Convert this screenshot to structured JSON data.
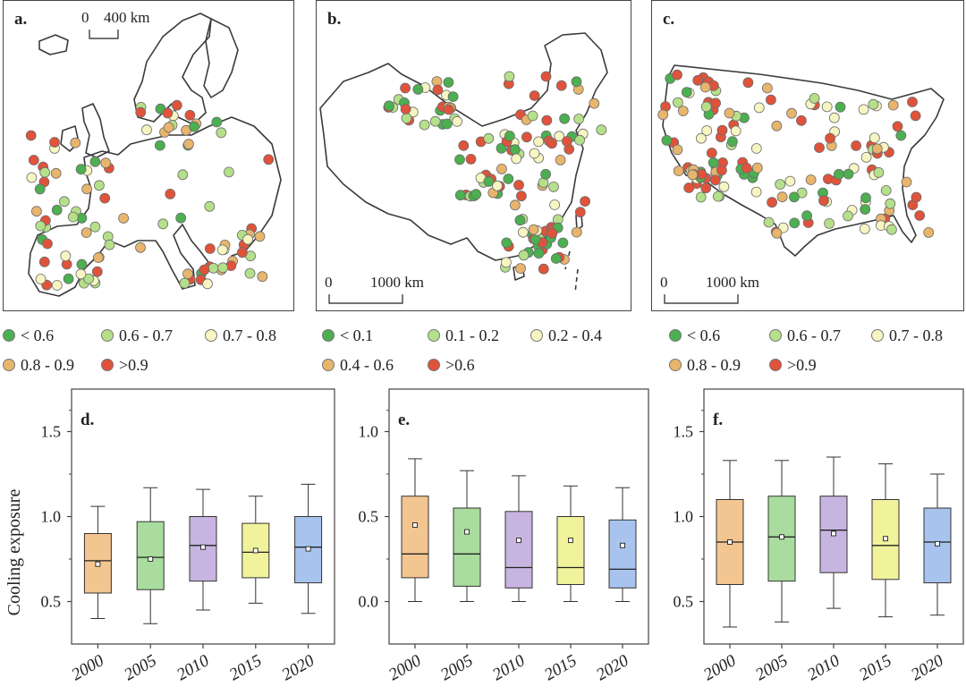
{
  "panels": {
    "a": {
      "label": "a.",
      "scale": {
        "zero": "0",
        "value": "400 km"
      }
    },
    "b": {
      "label": "b.",
      "scale": {
        "zero": "0",
        "value": "1000 km"
      }
    },
    "c": {
      "label": "c.",
      "scale": {
        "zero": "0",
        "value": "1000 km"
      }
    }
  },
  "colors": {
    "cat1": "#4caf50",
    "cat2": "#b5e08a",
    "cat3": "#f7f5c2",
    "cat4": "#e8b56c",
    "cat5": "#e0533a",
    "box_europe": "#f3c590",
    "box_2005": "#a9dc9e",
    "box_2010": "#c8b4e0",
    "box_2015": "#f1f39c",
    "box_2020": "#a8c4ee"
  },
  "legends": {
    "a": [
      "< 0.6",
      "0.6 - 0.7",
      "0.7 - 0.8",
      "0.8 - 0.9",
      ">0.9"
    ],
    "b": [
      "< 0.1",
      "0.1 - 0.2",
      "0.2 - 0.4",
      "0.4 - 0.6",
      ">0.6"
    ],
    "c": [
      "< 0.6",
      "0.6 - 0.7",
      "0.7 - 0.8",
      "0.8 - 0.9",
      ">0.9"
    ]
  },
  "chart_data": [
    {
      "panel": "d.",
      "type": "box",
      "ylabel": "Cooling exposure",
      "categories": [
        "2000",
        "2005",
        "2010",
        "2015",
        "2020"
      ],
      "ylim": [
        0.25,
        1.75
      ],
      "yticks": [
        "0.5",
        "1.0",
        "1.5"
      ],
      "ytick_values": [
        0.5,
        1.0,
        1.5
      ],
      "boxes": [
        {
          "min": 0.4,
          "q1": 0.55,
          "median": 0.74,
          "q3": 0.9,
          "max": 1.06,
          "mean": 0.72
        },
        {
          "min": 0.37,
          "q1": 0.57,
          "median": 0.76,
          "q3": 0.97,
          "max": 1.17,
          "mean": 0.75
        },
        {
          "min": 0.45,
          "q1": 0.62,
          "median": 0.83,
          "q3": 1.0,
          "max": 1.16,
          "mean": 0.82
        },
        {
          "min": 0.49,
          "q1": 0.64,
          "median": 0.79,
          "q3": 0.96,
          "max": 1.12,
          "mean": 0.8
        },
        {
          "min": 0.43,
          "q1": 0.61,
          "median": 0.82,
          "q3": 1.0,
          "max": 1.19,
          "mean": 0.81
        }
      ]
    },
    {
      "panel": "e.",
      "type": "box",
      "ylabel": "",
      "categories": [
        "2000",
        "2005",
        "2010",
        "2015",
        "2020"
      ],
      "ylim": [
        -0.25,
        1.25
      ],
      "yticks": [
        "0.0",
        "0.5",
        "1.0"
      ],
      "ytick_values": [
        0.0,
        0.5,
        1.0
      ],
      "boxes": [
        {
          "min": 0.0,
          "q1": 0.14,
          "median": 0.28,
          "q3": 0.62,
          "max": 0.84,
          "mean": 0.45
        },
        {
          "min": 0.0,
          "q1": 0.09,
          "median": 0.28,
          "q3": 0.55,
          "max": 0.77,
          "mean": 0.41
        },
        {
          "min": 0.0,
          "q1": 0.08,
          "median": 0.2,
          "q3": 0.53,
          "max": 0.74,
          "mean": 0.36
        },
        {
          "min": 0.0,
          "q1": 0.1,
          "median": 0.2,
          "q3": 0.5,
          "max": 0.68,
          "mean": 0.36
        },
        {
          "min": 0.0,
          "q1": 0.08,
          "median": 0.19,
          "q3": 0.48,
          "max": 0.67,
          "mean": 0.33
        }
      ]
    },
    {
      "panel": "f.",
      "type": "box",
      "ylabel": "",
      "categories": [
        "2000",
        "2005",
        "2010",
        "2015",
        "2020"
      ],
      "ylim": [
        0.25,
        1.75
      ],
      "yticks": [
        "0.5",
        "1.0",
        "1.5"
      ],
      "ytick_values": [
        0.5,
        1.0,
        1.5
      ],
      "boxes": [
        {
          "min": 0.35,
          "q1": 0.6,
          "median": 0.85,
          "q3": 1.1,
          "max": 1.33,
          "mean": 0.85
        },
        {
          "min": 0.38,
          "q1": 0.62,
          "median": 0.88,
          "q3": 1.12,
          "max": 1.33,
          "mean": 0.88
        },
        {
          "min": 0.46,
          "q1": 0.67,
          "median": 0.92,
          "q3": 1.12,
          "max": 1.35,
          "mean": 0.9
        },
        {
          "min": 0.41,
          "q1": 0.63,
          "median": 0.83,
          "q3": 1.1,
          "max": 1.31,
          "mean": 0.87
        },
        {
          "min": 0.42,
          "q1": 0.61,
          "median": 0.85,
          "q3": 1.05,
          "max": 1.25,
          "mean": 0.84
        }
      ]
    }
  ]
}
